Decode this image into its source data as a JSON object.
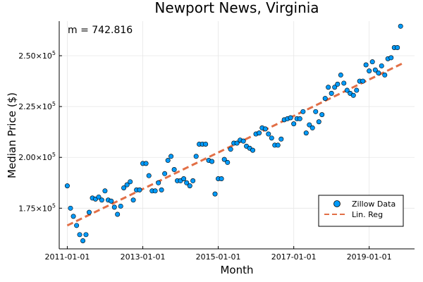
{
  "chart_data": {
    "type": "scatter",
    "title": "Newport News, Virginia",
    "xlabel": "Month",
    "ylabel": "Median Price ($)",
    "annotation": "m = 742.816",
    "x_ticks": [
      "2011-01-01",
      "2013-01-01",
      "2015-01-01",
      "2017-01-01",
      "2019-01-01"
    ],
    "y_ticks": [
      {
        "value": 175000,
        "mantissa": "1.75",
        "exp": "5"
      },
      {
        "value": 200000,
        "mantissa": "2.00",
        "exp": "5"
      },
      {
        "value": 225000,
        "mantissa": "2.25",
        "exp": "5"
      },
      {
        "value": 250000,
        "mantissa": "2.50",
        "exp": "5"
      }
    ],
    "ylim": [
      155000,
      267000
    ],
    "xlim": [
      "2010-10-15",
      "2020-03-15"
    ],
    "grid": true,
    "legend_position": "bottom-right",
    "marker_color": "#009af9",
    "line_color": "#e26f46",
    "series": [
      {
        "name": "Zillow Data",
        "kind": "scatter",
        "points": [
          [
            "2011-01-01",
            186000
          ],
          [
            "2011-02-01",
            175000
          ],
          [
            "2011-03-01",
            171000
          ],
          [
            "2011-04-01",
            166500
          ],
          [
            "2011-05-01",
            162000
          ],
          [
            "2011-06-01",
            159000
          ],
          [
            "2011-07-01",
            162000
          ],
          [
            "2011-08-01",
            173000
          ],
          [
            "2011-09-01",
            180000
          ],
          [
            "2011-10-01",
            179500
          ],
          [
            "2011-11-01",
            180500
          ],
          [
            "2011-12-01",
            179000
          ],
          [
            "2012-01-01",
            183500
          ],
          [
            "2012-02-01",
            179000
          ],
          [
            "2012-03-01",
            178500
          ],
          [
            "2012-04-01",
            175500
          ],
          [
            "2012-05-01",
            172000
          ],
          [
            "2012-06-01",
            176000
          ],
          [
            "2012-07-01",
            185000
          ],
          [
            "2012-08-01",
            186500
          ],
          [
            "2012-09-01",
            188000
          ],
          [
            "2012-10-01",
            179000
          ],
          [
            "2012-11-01",
            184000
          ],
          [
            "2012-12-01",
            184000
          ],
          [
            "2013-01-01",
            197000
          ],
          [
            "2013-02-01",
            197000
          ],
          [
            "2013-03-01",
            191000
          ],
          [
            "2013-04-01",
            183500
          ],
          [
            "2013-05-01",
            183500
          ],
          [
            "2013-06-01",
            187500
          ],
          [
            "2013-07-01",
            184000
          ],
          [
            "2013-08-01",
            192000
          ],
          [
            "2013-09-01",
            198500
          ],
          [
            "2013-10-01",
            200500
          ],
          [
            "2013-11-01",
            194000
          ],
          [
            "2013-12-01",
            188500
          ],
          [
            "2014-01-01",
            188500
          ],
          [
            "2014-02-01",
            189500
          ],
          [
            "2014-03-01",
            187500
          ],
          [
            "2014-04-01",
            186000
          ],
          [
            "2014-05-01",
            188500
          ],
          [
            "2014-06-01",
            200500
          ],
          [
            "2014-07-01",
            206500
          ],
          [
            "2014-08-01",
            206500
          ],
          [
            "2014-09-01",
            206500
          ],
          [
            "2014-10-01",
            198500
          ],
          [
            "2014-11-01",
            198000
          ],
          [
            "2014-12-01",
            182000
          ],
          [
            "2015-01-01",
            189500
          ],
          [
            "2015-02-01",
            189500
          ],
          [
            "2015-03-01",
            199000
          ],
          [
            "2015-04-01",
            197500
          ],
          [
            "2015-05-01",
            204000
          ],
          [
            "2015-06-01",
            207000
          ],
          [
            "2015-07-01",
            207000
          ],
          [
            "2015-08-01",
            208500
          ],
          [
            "2015-09-01",
            208000
          ],
          [
            "2015-10-01",
            205500
          ],
          [
            "2015-11-01",
            204500
          ],
          [
            "2015-12-01",
            203500
          ],
          [
            "2016-01-01",
            211500
          ],
          [
            "2016-02-01",
            212000
          ],
          [
            "2016-03-01",
            214500
          ],
          [
            "2016-04-01",
            214000
          ],
          [
            "2016-05-01",
            211500
          ],
          [
            "2016-06-01",
            209500
          ],
          [
            "2016-07-01",
            206000
          ],
          [
            "2016-08-01",
            206000
          ],
          [
            "2016-09-01",
            209000
          ],
          [
            "2016-10-01",
            218500
          ],
          [
            "2016-11-01",
            219000
          ],
          [
            "2016-12-01",
            219500
          ],
          [
            "2017-01-01",
            216500
          ],
          [
            "2017-02-01",
            219000
          ],
          [
            "2017-03-01",
            219000
          ],
          [
            "2017-04-01",
            222500
          ],
          [
            "2017-05-01",
            212000
          ],
          [
            "2017-06-01",
            216000
          ],
          [
            "2017-07-01",
            214500
          ],
          [
            "2017-08-01",
            222500
          ],
          [
            "2017-09-01",
            217500
          ],
          [
            "2017-10-01",
            221000
          ],
          [
            "2017-11-01",
            229000
          ],
          [
            "2017-12-01",
            234500
          ],
          [
            "2018-01-01",
            231500
          ],
          [
            "2018-02-01",
            234500
          ],
          [
            "2018-03-01",
            236000
          ],
          [
            "2018-04-01",
            240500
          ],
          [
            "2018-05-01",
            236500
          ],
          [
            "2018-06-01",
            233000
          ],
          [
            "2018-07-01",
            231500
          ],
          [
            "2018-08-01",
            230500
          ],
          [
            "2018-09-01",
            233000
          ],
          [
            "2018-10-01",
            237500
          ],
          [
            "2018-11-01",
            237500
          ],
          [
            "2018-12-01",
            245500
          ],
          [
            "2019-01-01",
            242500
          ],
          [
            "2019-02-01",
            247000
          ],
          [
            "2019-03-01",
            243000
          ],
          [
            "2019-04-01",
            241500
          ],
          [
            "2019-05-01",
            245000
          ],
          [
            "2019-06-01",
            240500
          ],
          [
            "2019-07-01",
            248500
          ],
          [
            "2019-08-01",
            249000
          ],
          [
            "2019-09-01",
            254000
          ],
          [
            "2019-10-01",
            254000
          ],
          [
            "2019-11-01",
            264500
          ]
        ]
      },
      {
        "name": "Lin. Reg",
        "kind": "line",
        "style": "dashed",
        "points": [
          [
            "2011-01-01",
            166500
          ],
          [
            "2019-12-01",
            246500
          ]
        ]
      }
    ]
  }
}
